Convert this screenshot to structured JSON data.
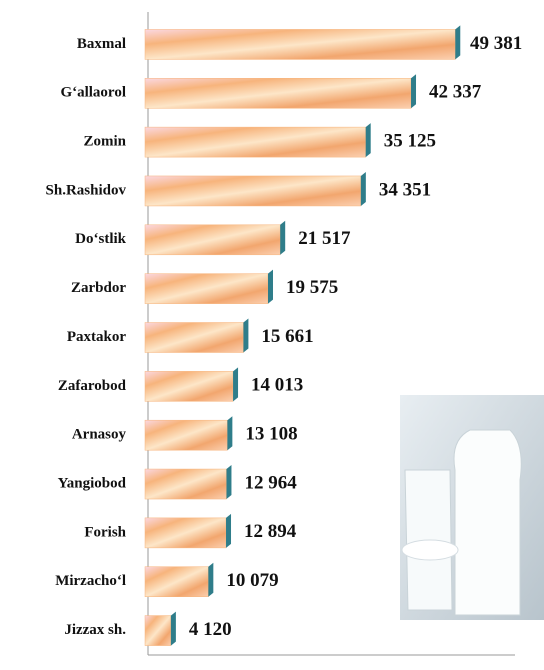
{
  "chart_data": {
    "type": "bar",
    "orientation": "horizontal",
    "categories": [
      "Baxmal",
      "G‘allaorol",
      "Zomin",
      "Sh.Rashidov",
      "Do‘stlik",
      "Zarbdor",
      "Paxtakor",
      "Zafarobod",
      "Arnasoy",
      "Yangiobod",
      "Forish",
      "Mirzacho‘l",
      "Jizzax sh."
    ],
    "values": [
      49381,
      42337,
      35125,
      34351,
      21517,
      19575,
      15661,
      14013,
      13108,
      12964,
      12894,
      10079,
      4120
    ],
    "value_labels": [
      "49 381",
      "42 337",
      "35 125",
      "34 351",
      "21 517",
      "19 575",
      "15 661",
      "14 013",
      "13 108",
      "12 964",
      "12 894",
      "10 079",
      "4 120"
    ],
    "color": "#f7b47c",
    "xlim": [
      0,
      60000
    ]
  }
}
